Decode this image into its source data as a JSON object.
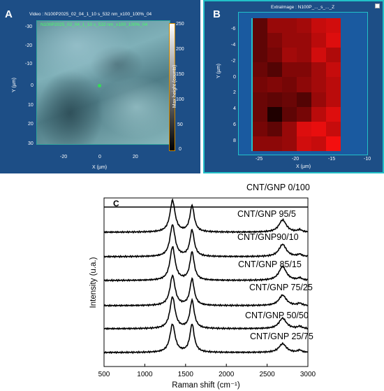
{
  "panels": {
    "a": {
      "label": "A",
      "title": "Video : N100P2025_02_04_1_10 s_532 nm_x100_100%_04",
      "image_caption": "N100P2025_02_04_1_10 s_532 nm_x100_100%_04",
      "xlabel": "X (µm)",
      "ylabel": "Y (µm)",
      "xticks": [
        "-20",
        "0",
        "20"
      ],
      "yticks": [
        "-30",
        "-20",
        "-10",
        "0",
        "10",
        "20",
        "30"
      ],
      "colorbar_label": "Max height (counts)",
      "colorbar_ticks": [
        "250",
        "200",
        "150",
        "100",
        "50",
        "0"
      ]
    },
    "b": {
      "label": "B",
      "title": "ExtraImage : N100P_..._s_..._Z",
      "xlabel": "X (µm)",
      "ylabel": "Y (µm)",
      "xticks": [
        "-25",
        "-20",
        "-15",
        "-10"
      ],
      "yticks": [
        "-6",
        "-4",
        "-2",
        "0",
        "2",
        "4",
        "6",
        "8"
      ],
      "heatmap": [
        [
          0.3,
          0.55,
          0.55,
          0.6,
          0.75,
          0.8
        ],
        [
          0.3,
          0.45,
          0.55,
          0.55,
          0.7,
          0.85
        ],
        [
          0.3,
          0.4,
          0.6,
          0.55,
          0.8,
          0.65
        ],
        [
          0.35,
          0.25,
          0.45,
          0.45,
          0.6,
          0.75
        ],
        [
          0.4,
          0.45,
          0.4,
          0.5,
          0.6,
          0.7
        ],
        [
          0.35,
          0.3,
          0.35,
          0.25,
          0.55,
          0.7
        ],
        [
          0.35,
          0.02,
          0.3,
          0.4,
          0.7,
          0.85
        ],
        [
          0.4,
          0.3,
          0.55,
          0.85,
          0.9,
          0.75
        ],
        [
          0.5,
          0.5,
          0.55,
          0.8,
          0.75,
          0.95
        ]
      ],
      "colors": {
        "frame": "#1d4e86",
        "highlight": "#22c0c8",
        "hot": "#ff1010",
        "cold": "#1a0000"
      }
    }
  },
  "chart_data": {
    "type": "line",
    "panel_label": "C",
    "xlabel": "Raman shift (cm⁻¹)",
    "ylabel": "Intensity (u.a.)",
    "xlim": [
      500,
      3000
    ],
    "xticks": [
      "500",
      "1000",
      "1500",
      "2000",
      "2500",
      "3000"
    ],
    "grid": false,
    "peaks": {
      "D": 1340,
      "G": 1580,
      "2D": 2690
    },
    "series": [
      {
        "name": "CNT/GNP 0/100",
        "D": 0.0,
        "G": 0.0,
        "2D": 0.0
      },
      {
        "name": "CNT/GNP 95/5",
        "D": 0.9,
        "G": 0.75,
        "2D": 0.35
      },
      {
        "name": "CNT/GNP90/10",
        "D": 0.9,
        "G": 0.75,
        "2D": 0.35
      },
      {
        "name": "CNT/GNP 85/15",
        "D": 0.95,
        "G": 0.8,
        "2D": 0.4
      },
      {
        "name": "CNT/GNP 75/25",
        "D": 0.85,
        "G": 0.75,
        "2D": 0.3
      },
      {
        "name": "CNT/GNP 50/50",
        "D": 0.9,
        "G": 0.8,
        "2D": 0.3
      },
      {
        "name": "CNT/GNP 25/75",
        "D": 0.8,
        "G": 0.8,
        "2D": 0.25
      }
    ],
    "colors": {
      "line": "#000000"
    }
  }
}
